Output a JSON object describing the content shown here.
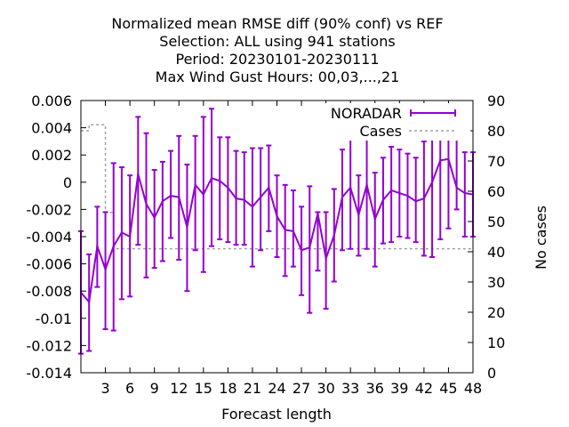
{
  "chart_data": {
    "type": "line",
    "title_lines": [
      "Normalized mean RMSE diff (90% conf) vs REF",
      "Selection: ALL using   941 stations",
      "Period: 20230101-20230111",
      "Max Wind Gust   Hours:  00,03,...,21"
    ],
    "xlabel": "Forecast length",
    "ylabel_left": "",
    "ylabel_right": "No cases",
    "xlim": [
      0,
      48
    ],
    "ylim_left": [
      -0.014,
      0.006
    ],
    "ylim_right": [
      0,
      90
    ],
    "x_ticks": [
      3,
      6,
      9,
      12,
      15,
      18,
      21,
      24,
      27,
      30,
      33,
      36,
      39,
      42,
      45,
      48
    ],
    "y_ticks_left": [
      0.006,
      0.004,
      0.002,
      0,
      -0.002,
      -0.004,
      -0.006,
      -0.008,
      -0.01,
      -0.012,
      -0.014
    ],
    "y_tick_labels_left": [
      "0.006",
      "0.004",
      "0.002",
      "0",
      "-0.002",
      "-0.004",
      "-0.006",
      "-0.008",
      "-0.01",
      "-0.012",
      "-0.014"
    ],
    "y_ticks_right": [
      0,
      10,
      20,
      30,
      40,
      50,
      60,
      70,
      80,
      90
    ],
    "legend_position": "top-right",
    "series": [
      {
        "name": "NORADAR",
        "color": "#9400d3",
        "style": "line-errorbars",
        "x": [
          0,
          1,
          2,
          3,
          4,
          5,
          6,
          7,
          8,
          9,
          10,
          11,
          12,
          13,
          14,
          15,
          16,
          17,
          18,
          19,
          20,
          21,
          22,
          23,
          24,
          25,
          26,
          27,
          28,
          29,
          30,
          31,
          32,
          33,
          34,
          35,
          36,
          37,
          38,
          39,
          40,
          41,
          42,
          43,
          44,
          45,
          46,
          47,
          48
        ],
        "y": [
          -0.0081,
          -0.0088,
          -0.0047,
          -0.0064,
          -0.0047,
          -0.0037,
          -0.004,
          0.0006,
          -0.0016,
          -0.0026,
          -0.0014,
          -0.001,
          -0.0011,
          -0.0033,
          -0.0002,
          -0.0009,
          0.0003,
          0.0001,
          -0.0004,
          -0.0012,
          -0.0013,
          -0.0018,
          -0.0011,
          -0.0004,
          -0.0025,
          -0.0035,
          -0.0036,
          -0.005,
          -0.0048,
          -0.0023,
          -0.0056,
          -0.0039,
          -0.0011,
          -0.0004,
          -0.0024,
          -0.0002,
          -0.0027,
          -0.0013,
          -0.0006,
          -0.0008,
          -0.001,
          -0.0014,
          -0.0012,
          0.0,
          0.0016,
          0.0017,
          -0.0004,
          -0.0008,
          -0.0009
        ],
        "y_low": [
          -0.0126,
          -0.0124,
          -0.0077,
          -0.0108,
          -0.0109,
          -0.0086,
          -0.0084,
          -0.0046,
          -0.007,
          -0.0063,
          -0.0058,
          -0.0041,
          -0.0057,
          -0.008,
          -0.005,
          -0.0066,
          -0.0047,
          -0.0042,
          -0.0044,
          -0.0046,
          -0.0046,
          -0.0062,
          -0.005,
          -0.0036,
          -0.0055,
          -0.0069,
          -0.0062,
          -0.0083,
          -0.0096,
          -0.0065,
          -0.0093,
          -0.0073,
          -0.005,
          -0.0049,
          -0.0054,
          -0.0049,
          -0.0062,
          -0.0045,
          -0.0044,
          -0.004,
          -0.0041,
          -0.0044,
          -0.0054,
          -0.0055,
          -0.0042,
          -0.0034,
          -0.002,
          -0.004,
          -0.004
        ],
        "y_high": [
          -0.0036,
          -0.0053,
          -0.0018,
          -0.0022,
          0.0014,
          0.0011,
          0.0005,
          0.0048,
          0.0036,
          0.0009,
          0.0015,
          0.0023,
          0.0034,
          0.0013,
          0.0034,
          0.0048,
          0.0054,
          0.0033,
          0.0033,
          0.0023,
          0.0022,
          0.0025,
          0.0025,
          0.0027,
          0.0005,
          -0.0002,
          -0.0006,
          -0.0018,
          -0.0003,
          -0.0022,
          -0.0022,
          -0.0005,
          0.0024,
          0.0043,
          0.0005,
          0.0042,
          0.0007,
          0.0018,
          0.0026,
          0.0024,
          0.0021,
          0.0018,
          0.003,
          0.0044,
          0.0057,
          0.0054,
          0.0032,
          0.0022,
          0.0022
        ]
      },
      {
        "name": "Cases",
        "color": "#a0a0a0",
        "style": "dashed-step",
        "axis": "right",
        "x": [
          0,
          1,
          2,
          3,
          4,
          5,
          6,
          7,
          8,
          9,
          10,
          11,
          12,
          13,
          14,
          15,
          16,
          17,
          18,
          19,
          20,
          21,
          22,
          23,
          24,
          25,
          26,
          27,
          28,
          29,
          30,
          31,
          32,
          33,
          34,
          35,
          36,
          37,
          38,
          39,
          40,
          41,
          42,
          43,
          44,
          45,
          46,
          47,
          48
        ],
        "y": [
          80,
          82,
          82,
          53,
          41,
          41,
          41,
          41,
          41,
          41,
          41,
          41,
          41,
          41,
          41,
          41,
          41,
          41,
          41,
          41,
          41,
          41,
          41,
          41,
          41,
          41,
          41,
          41,
          41,
          41,
          41,
          41,
          41,
          41,
          41,
          41,
          41,
          41,
          41,
          41,
          41,
          41,
          41,
          41,
          41,
          41,
          41,
          41,
          41
        ]
      }
    ]
  }
}
